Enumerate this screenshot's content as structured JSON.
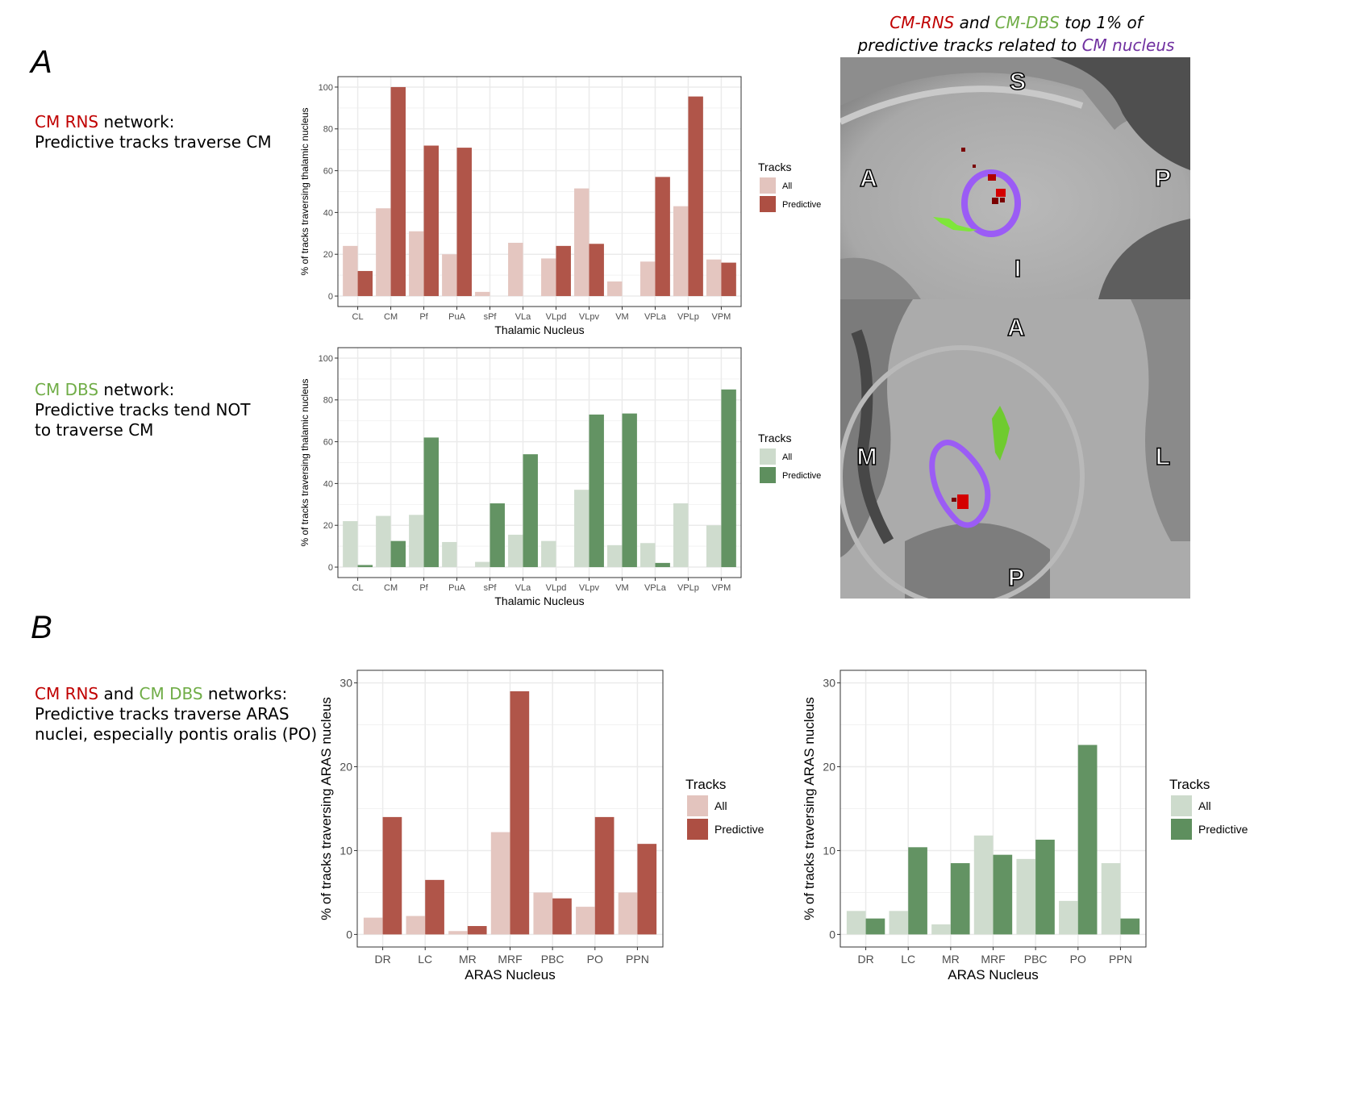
{
  "panel_labels": {
    "a": "A",
    "b": "B"
  },
  "colors": {
    "red_text": "#c00000",
    "green_text": "#70ad47",
    "purple_text": "#7030a0",
    "rns_all": "#e3c4be",
    "rns_pred": "#ad4f43",
    "dbs_all": "#cddbcc",
    "dbs_pred": "#5e8f5e"
  },
  "descriptions": {
    "rns": {
      "hl": "CM RNS",
      "rest": " network:",
      "line2": "Predictive tracks traverse CM"
    },
    "dbs": {
      "hl": "CM DBS",
      "rest": " network:",
      "line2": "Predictive tracks tend NOT",
      "line3": "to traverse CM"
    },
    "aras": {
      "hl1": "CM RNS",
      "mid": " and ",
      "hl2": "CM DBS",
      "rest": " networks:",
      "line2": "Predictive tracks traverse ARAS",
      "line3": "nuclei, especially pontis oralis (PO)"
    }
  },
  "mri": {
    "title": {
      "p1": "CM-RNS",
      "p2": " and ",
      "p3": "CM-DBS",
      "p4": " top 1% of",
      "p5": "predictive tracks related to ",
      "p6": "CM nucleus"
    },
    "sagittal_labels": {
      "top": "S",
      "left": "A",
      "right": "P",
      "bottom": "I"
    },
    "axial_labels": {
      "top": "A",
      "left": "M",
      "right": "L",
      "bottom": "P"
    }
  },
  "chart_data": [
    {
      "type": "bar",
      "title": "",
      "xlabel": "Thalamic Nucleus",
      "ylabel": "% of tracks traversing thalamic nucleus",
      "ylim": [
        0,
        100
      ],
      "yticks": [
        0,
        20,
        40,
        60,
        80,
        100
      ],
      "categories": [
        "CL",
        "CM",
        "Pf",
        "PuA",
        "sPf",
        "VLa",
        "VLpd",
        "VLpv",
        "VM",
        "VPLa",
        "VPLp",
        "VPM"
      ],
      "legend": {
        "title": "Tracks",
        "placement": "right"
      },
      "series": [
        {
          "name": "All",
          "color": "#e3c4be",
          "values": [
            24,
            42,
            31,
            20,
            2,
            25.5,
            18,
            51.5,
            7,
            16.5,
            43,
            17.5
          ]
        },
        {
          "name": "Predictive",
          "color": "#ad4f43",
          "values": [
            12,
            100,
            72,
            71,
            0,
            0,
            24,
            25,
            0,
            57,
            95.5,
            16
          ]
        }
      ]
    },
    {
      "type": "bar",
      "title": "",
      "xlabel": "Thalamic Nucleus",
      "ylabel": "% of tracks traversing thalamic nucleus",
      "ylim": [
        0,
        100
      ],
      "yticks": [
        0,
        20,
        40,
        60,
        80,
        100
      ],
      "categories": [
        "CL",
        "CM",
        "Pf",
        "PuA",
        "sPf",
        "VLa",
        "VLpd",
        "VLpv",
        "VM",
        "VPLa",
        "VPLp",
        "VPM"
      ],
      "legend": {
        "title": "Tracks",
        "placement": "right"
      },
      "series": [
        {
          "name": "All",
          "color": "#cddbcc",
          "values": [
            22,
            24.5,
            25,
            12,
            2.5,
            15.5,
            12.5,
            37,
            10.5,
            11.5,
            30.5,
            20
          ]
        },
        {
          "name": "Predictive",
          "color": "#5e8f5e",
          "values": [
            1,
            12.5,
            62,
            0,
            30.5,
            54,
            0,
            73,
            73.5,
            2,
            0,
            85
          ]
        }
      ]
    },
    {
      "type": "bar",
      "title": "",
      "xlabel": "ARAS Nucleus",
      "ylabel": "% of tracks traversing ARAS nucleus",
      "ylim": [
        0,
        30
      ],
      "yticks": [
        0,
        10,
        20,
        30
      ],
      "categories": [
        "DR",
        "LC",
        "MR",
        "MRF",
        "PBC",
        "PO",
        "PPN"
      ],
      "legend": {
        "title": "Tracks",
        "placement": "right"
      },
      "series": [
        {
          "name": "All",
          "color": "#e3c4be",
          "values": [
            2,
            2.2,
            0.4,
            12.2,
            5,
            3.3,
            5
          ]
        },
        {
          "name": "Predictive",
          "color": "#ad4f43",
          "values": [
            14,
            6.5,
            1,
            29,
            4.3,
            14,
            10.8
          ]
        }
      ]
    },
    {
      "type": "bar",
      "title": "",
      "xlabel": "ARAS Nucleus",
      "ylabel": "% of tracks traversing ARAS nucleus",
      "ylim": [
        0,
        30
      ],
      "yticks": [
        0,
        10,
        20,
        30
      ],
      "categories": [
        "DR",
        "LC",
        "MR",
        "MRF",
        "PBC",
        "PO",
        "PPN"
      ],
      "legend": {
        "title": "Tracks",
        "placement": "right"
      },
      "series": [
        {
          "name": "All",
          "color": "#cddbcc",
          "values": [
            2.8,
            2.8,
            1.2,
            11.8,
            9,
            4,
            8.5
          ]
        },
        {
          "name": "Predictive",
          "color": "#5e8f5e",
          "values": [
            1.9,
            10.4,
            8.5,
            9.5,
            11.3,
            22.6,
            1.9
          ]
        }
      ]
    }
  ]
}
